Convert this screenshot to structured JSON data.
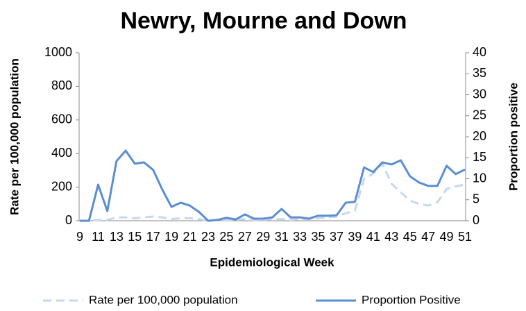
{
  "chart_data": {
    "type": "line",
    "title": "Newry, Mourne and Down",
    "x_label": "Epidemiological Week",
    "y_label": "Rate per 100,000 population",
    "y2_label": "Proportion positive",
    "categories": [
      "9",
      null,
      "11",
      null,
      "13",
      null,
      "15",
      null,
      "17",
      null,
      "19",
      null,
      "21",
      null,
      "23",
      null,
      "25",
      null,
      "27",
      null,
      "29",
      null,
      "31",
      null,
      "33",
      null,
      "35",
      null,
      "37",
      null,
      "39",
      null,
      "41",
      null,
      "43",
      null,
      "45",
      null,
      "47",
      null,
      "49",
      null,
      "51"
    ],
    "ylim": [
      0,
      1000
    ],
    "yticks": [
      0,
      200,
      400,
      600,
      800,
      1000
    ],
    "y2lim": [
      0,
      40
    ],
    "y2ticks": [
      0,
      5,
      10,
      15,
      20,
      25,
      30,
      35,
      40
    ],
    "grid": false,
    "legend": "bottom",
    "series": [
      {
        "name": "Rate per 100,000 population",
        "color": "#c6d7ee",
        "dashed": true,
        "values": [
          0,
          0,
          5,
          5,
          20,
          20,
          15,
          20,
          25,
          20,
          10,
          15,
          15,
          10,
          0,
          5,
          5,
          5,
          10,
          5,
          5,
          10,
          10,
          5,
          10,
          10,
          15,
          20,
          25,
          45,
          60,
          250,
          280,
          340,
          220,
          170,
          120,
          100,
          90,
          110,
          190,
          205,
          215
        ]
      },
      {
        "name": "Proportion Positive",
        "color": "#5a8ed0",
        "axis": "y2",
        "values": [
          0,
          0,
          8.6,
          2.3,
          14.2,
          16.7,
          13.6,
          13.9,
          12.1,
          7.4,
          3.3,
          4.3,
          3.6,
          2.1,
          0,
          0.2,
          0.7,
          0.3,
          1.5,
          0.5,
          0.5,
          0.8,
          2.8,
          0.8,
          0.8,
          0.5,
          1.2,
          1.2,
          1.3,
          4.3,
          4.5,
          12.7,
          11.6,
          13.9,
          13.4,
          14.4,
          10.6,
          9.1,
          8.3,
          8.3,
          13.1,
          11.1,
          12.2
        ]
      }
    ]
  }
}
